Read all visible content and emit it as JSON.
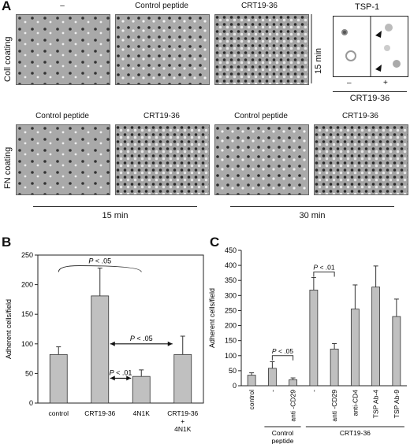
{
  "panelA": {
    "letter": "A",
    "row1_labels": [
      "–",
      "Control peptide",
      "CRT19-36"
    ],
    "row1_side": "Coll coating",
    "time_label": "15 min",
    "tsp_label": "TSP-1",
    "tsp_minus": "–",
    "tsp_plus": "+",
    "tsp_crt": "CRT19-36",
    "row2_labels": [
      "Control peptide",
      "CRT19-36",
      "Control peptide",
      "CRT19-36"
    ],
    "row2_side": "FN coating",
    "bracket1": "15 min",
    "bracket2": "30 min"
  },
  "panelB": {
    "letter": "B"
  },
  "panelC": {
    "letter": "C"
  },
  "chart_data": [
    {
      "type": "bar",
      "ylabel": "Adherent cells/field",
      "ylim": [
        0,
        250
      ],
      "yticks": [
        0,
        50,
        100,
        150,
        200,
        250
      ],
      "categories": [
        "control",
        "CRT19-36",
        "4N1K",
        "CRT19-36 + 4N1K"
      ],
      "category_lines": [
        [
          "control"
        ],
        [
          "CRT19-36"
        ],
        [
          "4N1K"
        ],
        [
          "CRT19-36",
          "+",
          "4N1K"
        ]
      ],
      "values": [
        82,
        181,
        45,
        82
      ],
      "errors": [
        13,
        47,
        11,
        31
      ],
      "annotations": [
        "P < .05",
        "P < .05",
        "P < .01"
      ],
      "bar_color": "#c0c0c0"
    },
    {
      "type": "bar",
      "ylabel": "Adherent cells/field",
      "ylim": [
        0,
        450
      ],
      "yticks": [
        0,
        50,
        100,
        150,
        200,
        250,
        300,
        350,
        400,
        450
      ],
      "categories": [
        "control",
        "-",
        "anti -CD29",
        "-",
        "anti -CD29",
        "anti-CD4",
        "TSP Ab-4",
        "TSP Ab-9"
      ],
      "values": [
        35,
        58,
        20,
        318,
        122,
        255,
        328,
        230
      ],
      "errors": [
        8,
        22,
        6,
        42,
        18,
        80,
        70,
        58
      ],
      "groups": [
        {
          "label_lines": [
            "Control",
            "peptide"
          ]
        },
        {
          "label_lines": [
            "CRT19-36"
          ]
        }
      ],
      "annotations": [
        "P < .05",
        "P < .01"
      ],
      "bar_color": "#c0c0c0"
    }
  ]
}
